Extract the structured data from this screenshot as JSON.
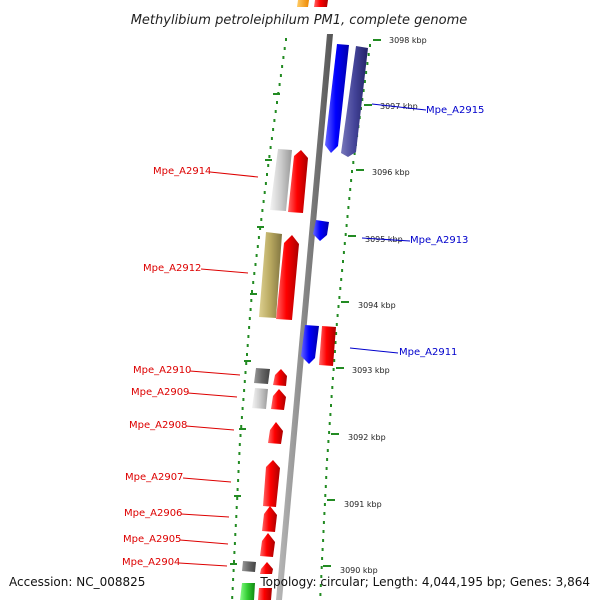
{
  "title": "Methylibium petroleiphilum PM1, complete genome",
  "footer": {
    "accession": "Accession: NC_008825",
    "info": "Topology: circular; Length: 4,044,195 bp; Genes: 3,864"
  },
  "scale_ticks": [
    {
      "label": "3098 kbp"
    },
    {
      "label": "3097 kbp"
    },
    {
      "label": "3096 kbp"
    },
    {
      "label": "3095 kbp"
    },
    {
      "label": "3094 kbp"
    },
    {
      "label": "3093 kbp"
    },
    {
      "label": "3092 kbp"
    },
    {
      "label": "3091 kbp"
    },
    {
      "label": "3090 kbp"
    }
  ],
  "gene_labels": [
    {
      "name": "Mpe_A2915",
      "color": "#0000cc"
    },
    {
      "name": "Mpe_A2914",
      "color": "#dd0000"
    },
    {
      "name": "Mpe_A2913",
      "color": "#0000cc"
    },
    {
      "name": "Mpe_A2912",
      "color": "#dd0000"
    },
    {
      "name": "Mpe_A2911",
      "color": "#0000cc"
    },
    {
      "name": "Mpe_A2910",
      "color": "#dd0000"
    },
    {
      "name": "Mpe_A2909",
      "color": "#dd0000"
    },
    {
      "name": "Mpe_A2908",
      "color": "#dd0000"
    },
    {
      "name": "Mpe_A2907",
      "color": "#dd0000"
    },
    {
      "name": "Mpe_A2906",
      "color": "#dd0000"
    },
    {
      "name": "Mpe_A2905",
      "color": "#dd0000"
    },
    {
      "name": "Mpe_A2904",
      "color": "#dd0000"
    }
  ],
  "colors": {
    "backbone": "#888888",
    "tick": "#228b22",
    "forward": "#ee0000",
    "reverse": "#0000ee",
    "dark_reverse": "#333388",
    "silver": "#c8c8c8",
    "olive": "#b8a860",
    "grey": "#666666",
    "green": "#33cc33",
    "orange": "#ff9900"
  }
}
